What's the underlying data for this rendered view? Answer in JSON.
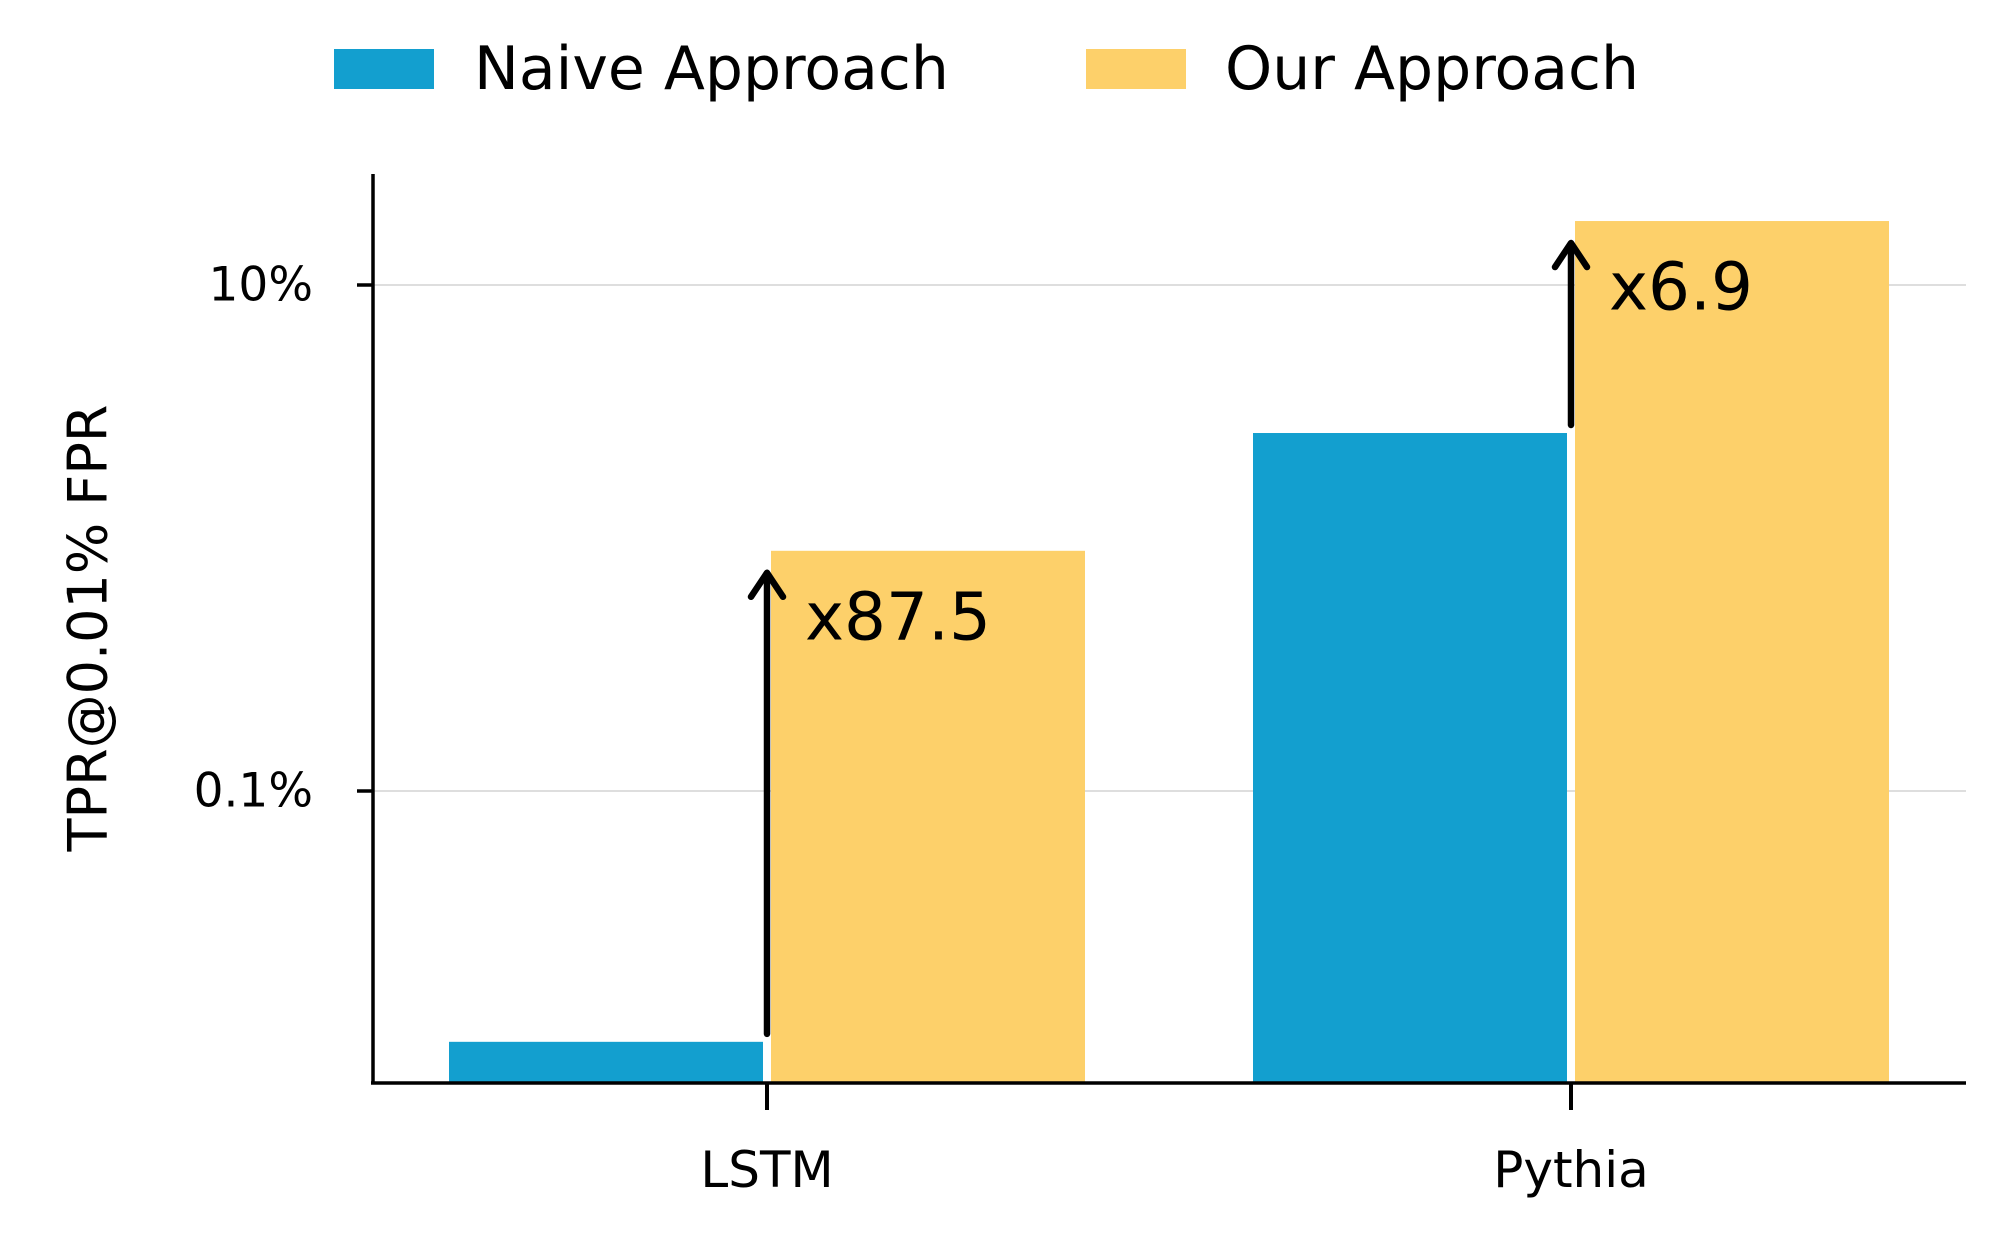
{
  "chart_data": {
    "type": "bar",
    "yscale": "log",
    "ylabel": "TPR@0.01% FPR",
    "xlabel": "",
    "ylim": [
      0.0067,
      20
    ],
    "yticks": [
      {
        "value": 0.1,
        "label": "0.1%"
      },
      {
        "value": 10,
        "label": "10%"
      }
    ],
    "categories": [
      "LSTM",
      "Pythia"
    ],
    "series": [
      {
        "name": "Naive Approach",
        "color": "#139fcf",
        "values": [
          0.0102,
          2.6
        ]
      },
      {
        "name": "Our Approach",
        "color": "#fdd06a",
        "values": [
          0.89,
          17.9
        ]
      }
    ],
    "annotations": [
      {
        "category": "LSTM",
        "text": "x87.5",
        "from": 0.0102,
        "to": 0.89
      },
      {
        "category": "Pythia",
        "text": "x6.9",
        "from": 2.6,
        "to": 17.9
      }
    ],
    "grid": "y-major",
    "legend_position": "top-center"
  }
}
